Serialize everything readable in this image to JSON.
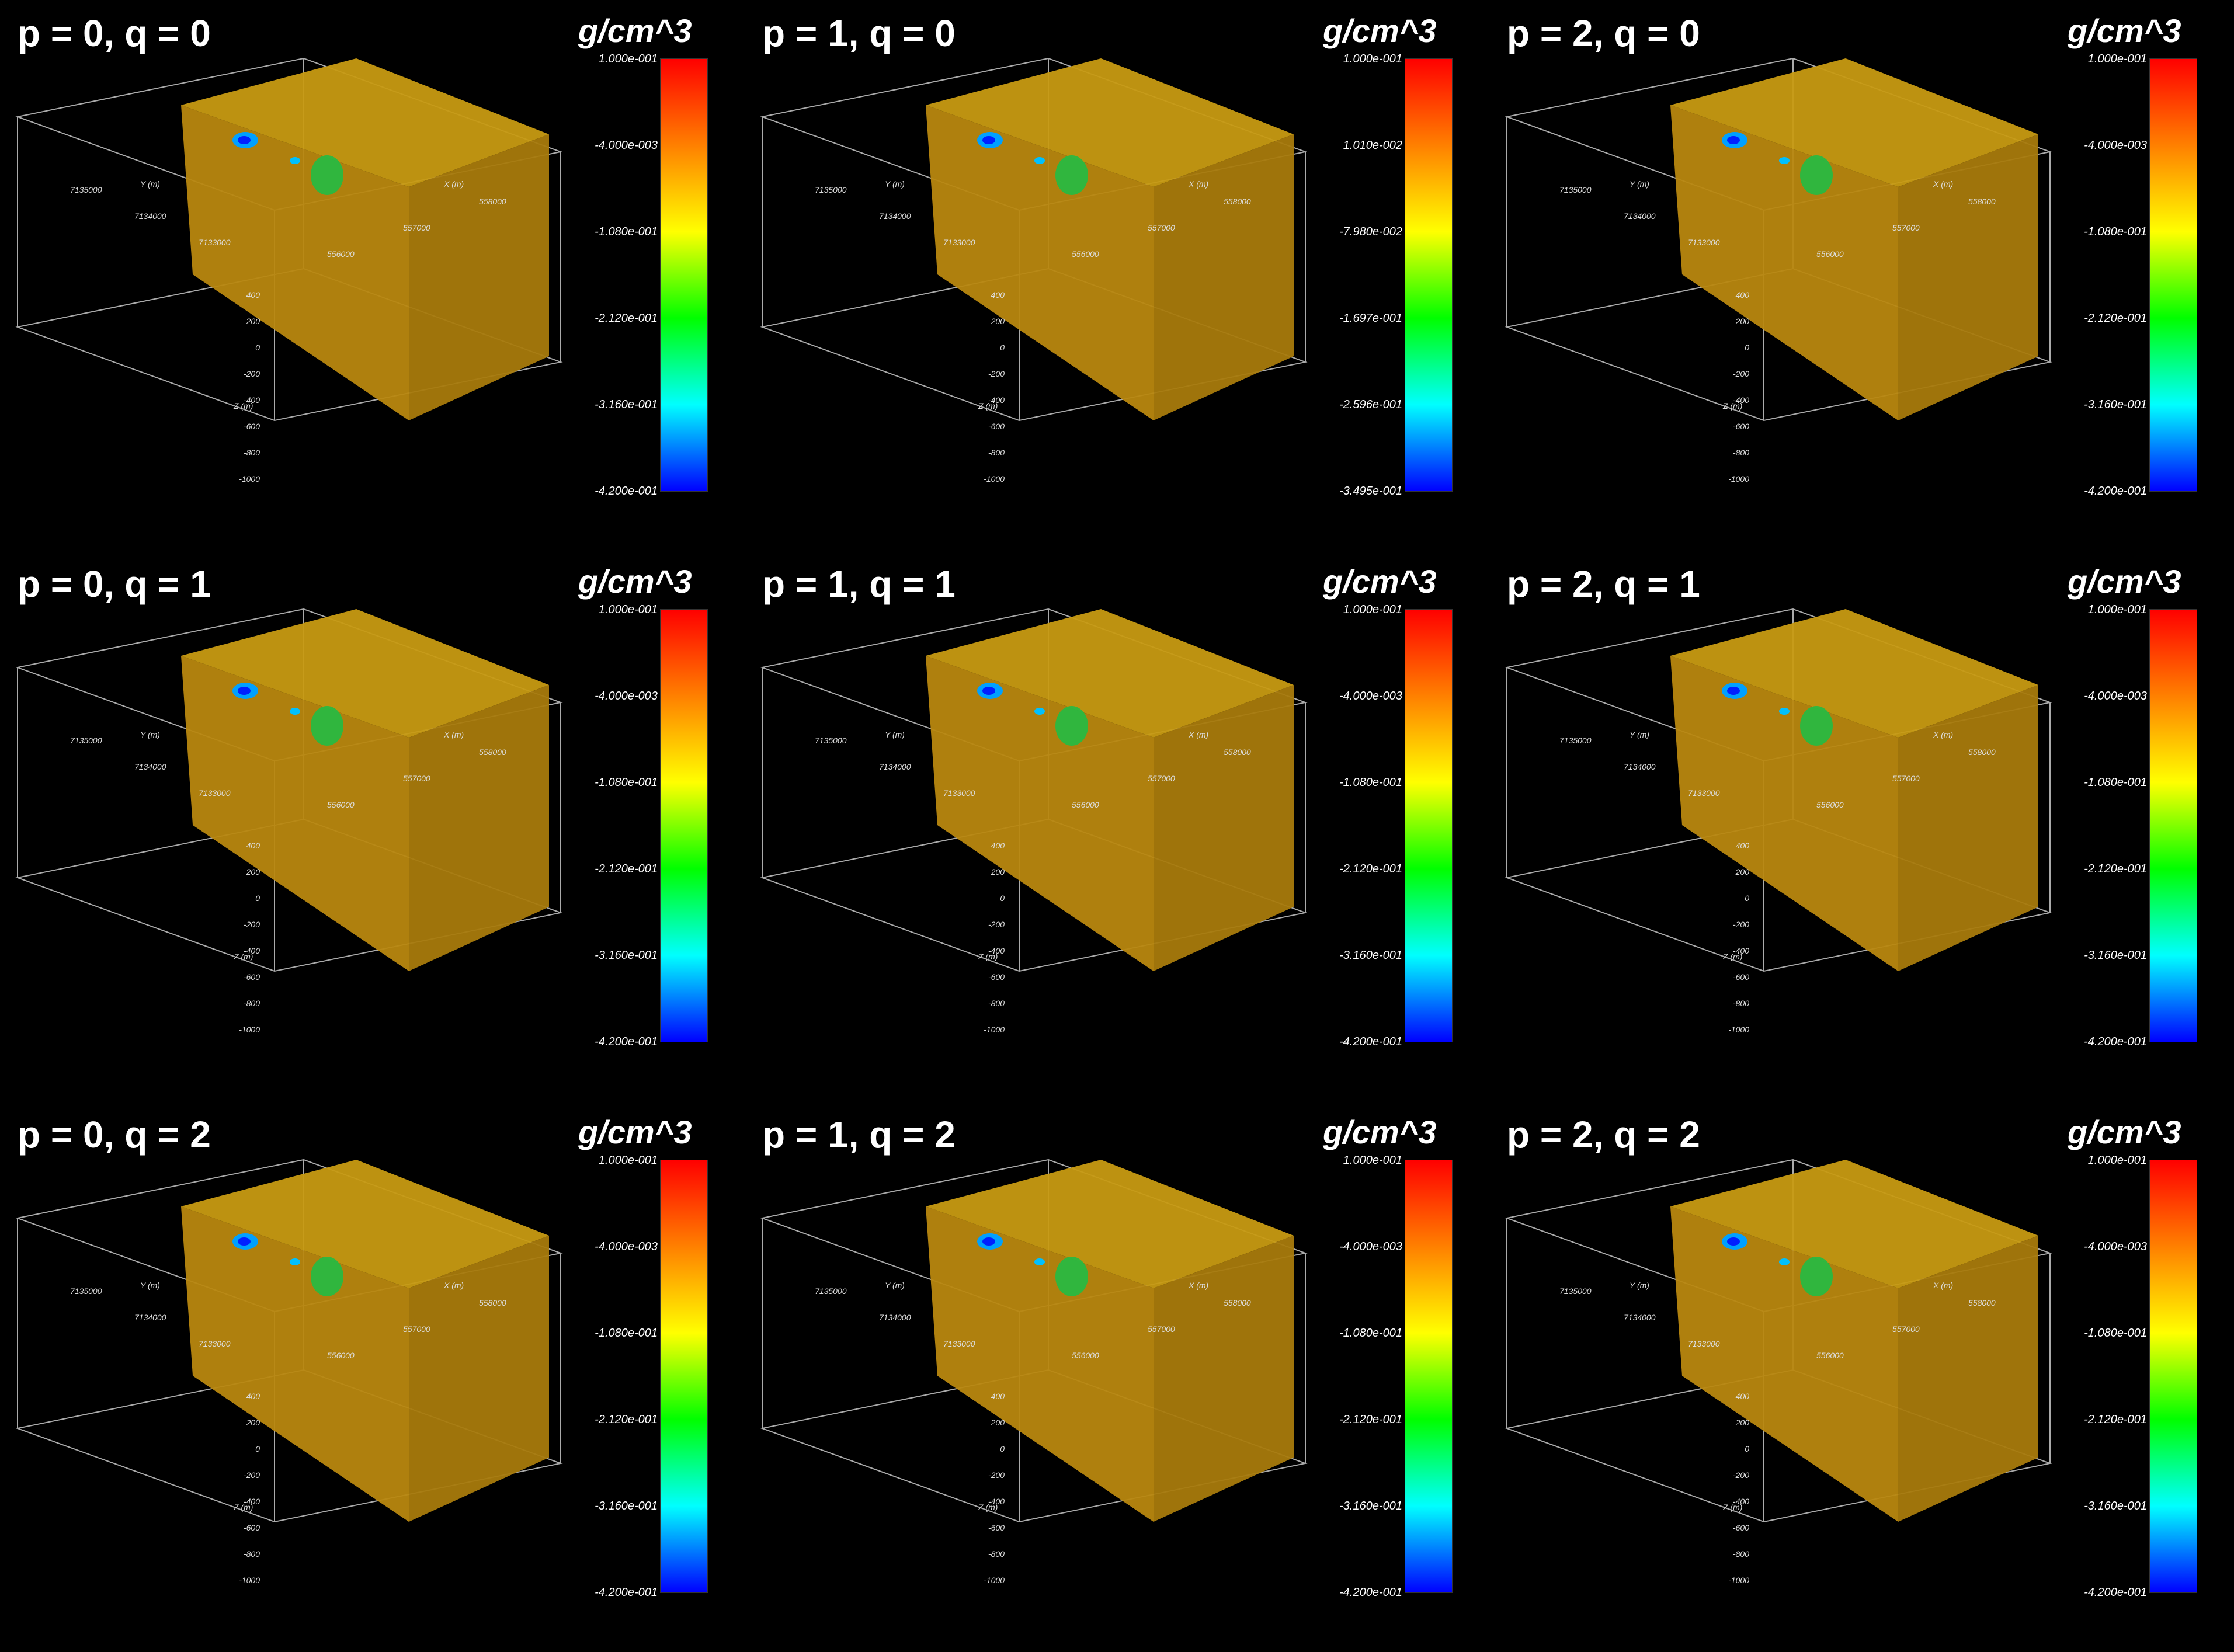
{
  "unit_label": "g/cm^3",
  "axis_labels": {
    "x": "X (m)",
    "y": "Y (m)",
    "z": "Z (m)"
  },
  "axis_ticks": {
    "x": [
      "556000",
      "557000",
      "558000"
    ],
    "y": [
      "7133000",
      "7134000",
      "7135000"
    ],
    "z": [
      "400",
      "200",
      "0",
      "-200",
      "-400",
      "-600",
      "-800",
      "-1000"
    ]
  },
  "colors": {
    "background": "#000000",
    "block": "#b8870f",
    "colormap": [
      "#0000ff",
      "#00ffff",
      "#00ff00",
      "#ffff00",
      "#ff8000",
      "#ff0000"
    ]
  },
  "panels": [
    {
      "title": "p = 0, q = 0",
      "ticks": [
        "1.000e-001",
        "-4.000e-003",
        "-1.080e-001",
        "-2.120e-001",
        "-3.160e-001",
        "-4.200e-001"
      ]
    },
    {
      "title": "p = 1, q = 0",
      "ticks": [
        "1.000e-001",
        "1.010e-002",
        "-7.980e-002",
        "-1.697e-001",
        "-2.596e-001",
        "-3.495e-001"
      ]
    },
    {
      "title": "p = 2, q = 0",
      "ticks": [
        "1.000e-001",
        "-4.000e-003",
        "-1.080e-001",
        "-2.120e-001",
        "-3.160e-001",
        "-4.200e-001"
      ]
    },
    {
      "title": "p = 0, q = 1",
      "ticks": [
        "1.000e-001",
        "-4.000e-003",
        "-1.080e-001",
        "-2.120e-001",
        "-3.160e-001",
        "-4.200e-001"
      ]
    },
    {
      "title": "p = 1, q = 1",
      "ticks": [
        "1.000e-001",
        "-4.000e-003",
        "-1.080e-001",
        "-2.120e-001",
        "-3.160e-001",
        "-4.200e-001"
      ]
    },
    {
      "title": "p = 2, q = 1",
      "ticks": [
        "1.000e-001",
        "-4.000e-003",
        "-1.080e-001",
        "-2.120e-001",
        "-3.160e-001",
        "-4.200e-001"
      ]
    },
    {
      "title": "p = 0, q = 2",
      "ticks": [
        "1.000e-001",
        "-4.000e-003",
        "-1.080e-001",
        "-2.120e-001",
        "-3.160e-001",
        "-4.200e-001"
      ]
    },
    {
      "title": "p = 1, q = 2",
      "ticks": [
        "1.000e-001",
        "-4.000e-003",
        "-1.080e-001",
        "-2.120e-001",
        "-3.160e-001",
        "-4.200e-001"
      ]
    },
    {
      "title": "p = 2, q = 2",
      "ticks": [
        "1.000e-001",
        "-4.000e-003",
        "-1.080e-001",
        "-2.120e-001",
        "-3.160e-001",
        "-4.200e-001"
      ]
    }
  ]
}
